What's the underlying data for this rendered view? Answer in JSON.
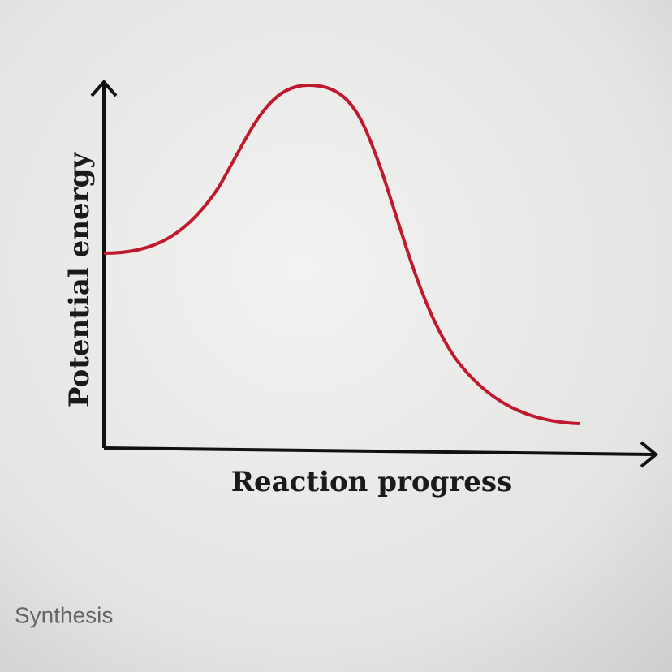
{
  "diagram": {
    "y_axis_label": "Potential energy",
    "x_axis_label": "Reaction progress"
  },
  "answer_options": [
    "Synthesis"
  ]
}
